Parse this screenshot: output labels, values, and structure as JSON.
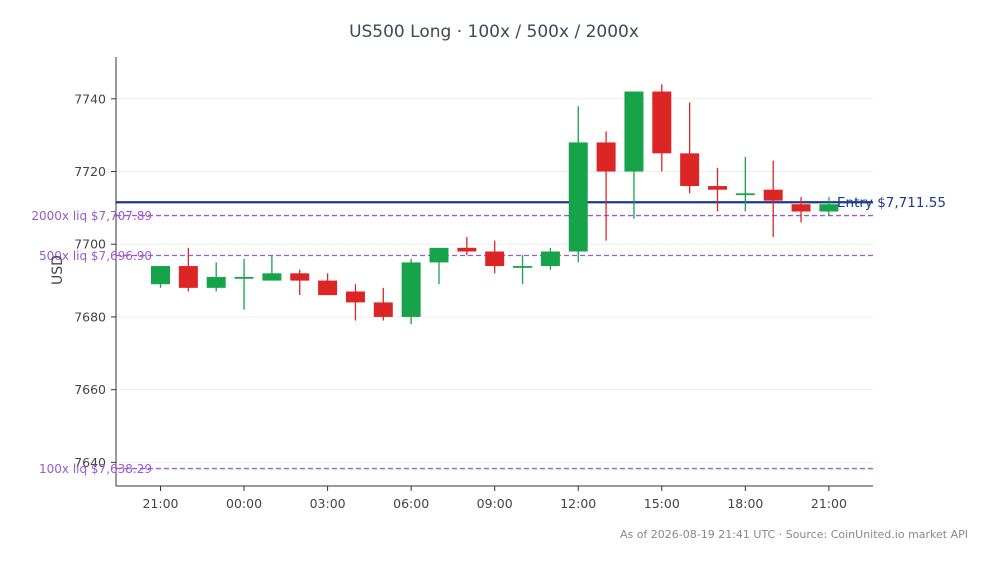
{
  "chart_data": {
    "type": "candlestick",
    "title": "US500 Long · 100x / 500x / 2000x",
    "ylabel": "USD",
    "xlabel": "",
    "ylim": [
      7633.5,
      7751.5
    ],
    "y_ticks": [
      7640,
      7660,
      7680,
      7700,
      7720,
      7740
    ],
    "x_ticks": [
      {
        "label": "21:00",
        "index": 0
      },
      {
        "label": "00:00",
        "index": 3
      },
      {
        "label": "03:00",
        "index": 6
      },
      {
        "label": "06:00",
        "index": 9
      },
      {
        "label": "09:00",
        "index": 12
      },
      {
        "label": "12:00",
        "index": 15
      },
      {
        "label": "15:00",
        "index": 18
      },
      {
        "label": "18:00",
        "index": 21
      },
      {
        "label": "21:00",
        "index": 24
      }
    ],
    "grid": "horizontal",
    "colors": {
      "up": "#16a34a",
      "down": "#dc2626",
      "entry": "#1e3a8a",
      "liq": "#9b59d0",
      "text": "#444444",
      "axis": "#333333",
      "grid": "#eeeeee"
    },
    "candles": [
      {
        "open": 7689,
        "high": 7694,
        "low": 7688,
        "close": 7694
      },
      {
        "open": 7694,
        "high": 7699,
        "low": 7687,
        "close": 7688
      },
      {
        "open": 7688,
        "high": 7695,
        "low": 7687,
        "close": 7691
      },
      {
        "open": 7691,
        "high": 7696,
        "low": 7682,
        "close": 7691
      },
      {
        "open": 7690,
        "high": 7697,
        "low": 7690,
        "close": 7692
      },
      {
        "open": 7692,
        "high": 7693,
        "low": 7686,
        "close": 7690
      },
      {
        "open": 7690,
        "high": 7692,
        "low": 7686,
        "close": 7686
      },
      {
        "open": 7687,
        "high": 7689,
        "low": 7679,
        "close": 7684
      },
      {
        "open": 7684,
        "high": 7688,
        "low": 7679,
        "close": 7680
      },
      {
        "open": 7680,
        "high": 7696,
        "low": 7678,
        "close": 7695
      },
      {
        "open": 7695,
        "high": 7699,
        "low": 7689,
        "close": 7699
      },
      {
        "open": 7699,
        "high": 7702,
        "low": 7697,
        "close": 7698
      },
      {
        "open": 7698,
        "high": 7701,
        "low": 7692,
        "close": 7694
      },
      {
        "open": 7694,
        "high": 7697,
        "low": 7689,
        "close": 7694
      },
      {
        "open": 7694,
        "high": 7699,
        "low": 7693,
        "close": 7698
      },
      {
        "open": 7698,
        "high": 7738,
        "low": 7695,
        "close": 7728
      },
      {
        "open": 7728,
        "high": 7731,
        "low": 7701,
        "close": 7720
      },
      {
        "open": 7720,
        "high": 7742,
        "low": 7707,
        "close": 7742
      },
      {
        "open": 7742,
        "high": 7744,
        "low": 7720,
        "close": 7725
      },
      {
        "open": 7725,
        "high": 7739,
        "low": 7714,
        "close": 7716
      },
      {
        "open": 7716,
        "high": 7721,
        "low": 7709,
        "close": 7715
      },
      {
        "open": 7714,
        "high": 7724,
        "low": 7709,
        "close": 7714
      },
      {
        "open": 7715,
        "high": 7723,
        "low": 7702,
        "close": 7712
      },
      {
        "open": 7711,
        "high": 7713,
        "low": 7706,
        "close": 7709
      },
      {
        "open": 7709,
        "high": 7713,
        "low": 7708,
        "close": 7711
      }
    ],
    "lines": [
      {
        "label": "Entry $7,711.55",
        "value": 7711.55,
        "style": "solid",
        "color": "#1e3a8a",
        "label_side": "right"
      },
      {
        "label": "2000x liq $7,707.89",
        "value": 7707.89,
        "style": "dashed",
        "color": "#9b59d0",
        "label_side": "left"
      },
      {
        "label": "500x liq $7,696.90",
        "value": 7696.9,
        "style": "dashed",
        "color": "#9b59d0",
        "label_side": "left"
      },
      {
        "label": "100x liq $7,638.29",
        "value": 7638.29,
        "style": "dashed",
        "color": "#9b59d0",
        "label_side": "left"
      }
    ],
    "footnote": "As of 2026-08-19 21:41 UTC · Source: CoinUnited.io market API"
  }
}
